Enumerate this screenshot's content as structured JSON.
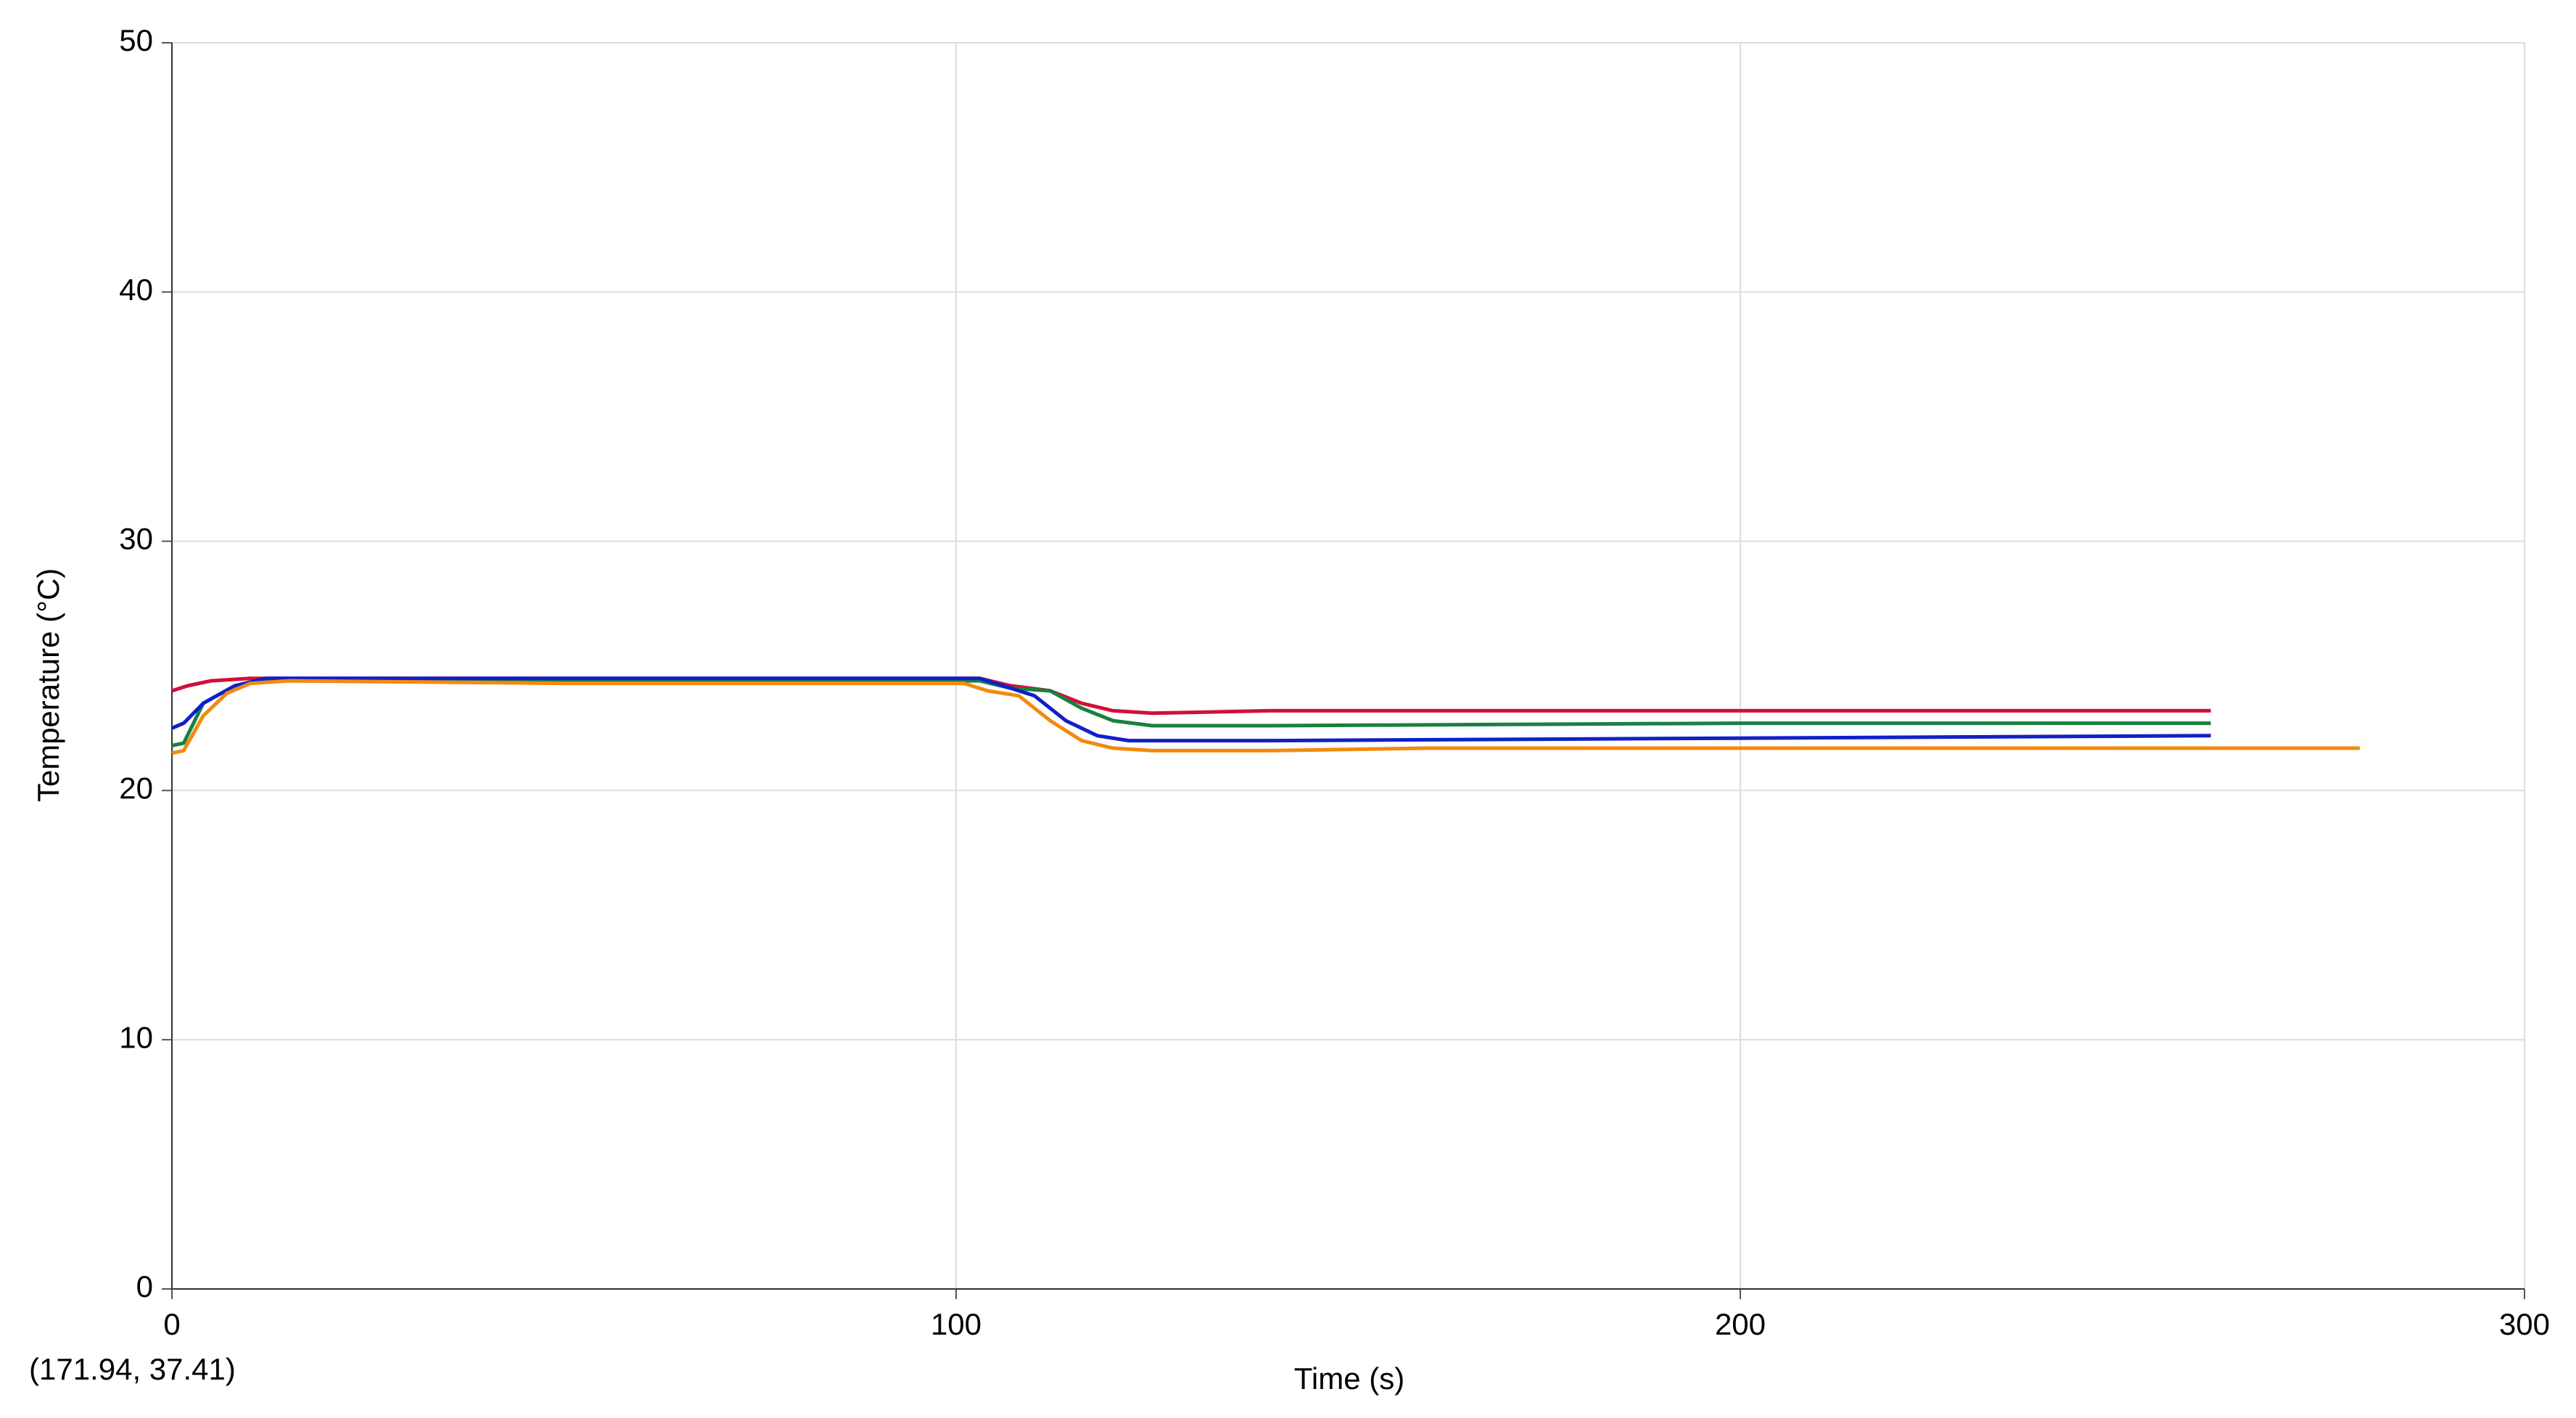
{
  "chart_data": {
    "type": "line",
    "x_label": "Time (s)",
    "y_label": "Temperature (°C)",
    "annotation": "(171.94, 37.41)",
    "xlim": [
      0,
      300
    ],
    "xticks": [
      0,
      100,
      200,
      300
    ],
    "ylim": [
      0,
      50
    ],
    "yticks": [
      0,
      10,
      20,
      30,
      40,
      50
    ],
    "grid": true,
    "series": [
      {
        "color": "#d0103a",
        "x": [
          0,
          2,
          5,
          10,
          50,
          103,
          107,
          112,
          116,
          120,
          125,
          140,
          200,
          260
        ],
        "values": [
          24.0,
          24.2,
          24.4,
          24.5,
          24.5,
          24.5,
          24.2,
          24.0,
          23.5,
          23.2,
          23.1,
          23.2,
          23.2,
          23.2
        ]
      },
      {
        "color": "#1a8040",
        "x": [
          0,
          1.5,
          4,
          8,
          12,
          50,
          103,
          107,
          112,
          116,
          120,
          125,
          140,
          200,
          260
        ],
        "values": [
          21.8,
          21.9,
          23.5,
          24.2,
          24.4,
          24.4,
          24.4,
          24.1,
          24.0,
          23.3,
          22.8,
          22.6,
          22.6,
          22.7,
          22.7
        ]
      },
      {
        "color": "#1020c8",
        "x": [
          0,
          1.5,
          4,
          8,
          12,
          50,
          103,
          107,
          110,
          114,
          118,
          122,
          140,
          200,
          260
        ],
        "values": [
          22.5,
          22.7,
          23.5,
          24.2,
          24.5,
          24.5,
          24.5,
          24.1,
          23.8,
          22.8,
          22.2,
          22.0,
          22.0,
          22.1,
          22.2
        ]
      },
      {
        "color": "#f28a10",
        "x": [
          0,
          1.5,
          4,
          7,
          10,
          15,
          50,
          101,
          104,
          108,
          112,
          116,
          120,
          125,
          140,
          160,
          220,
          279
        ],
        "values": [
          21.5,
          21.6,
          23.0,
          23.9,
          24.3,
          24.4,
          24.3,
          24.3,
          24.0,
          23.8,
          22.8,
          22.0,
          21.7,
          21.6,
          21.6,
          21.7,
          21.7,
          21.7
        ]
      }
    ]
  }
}
